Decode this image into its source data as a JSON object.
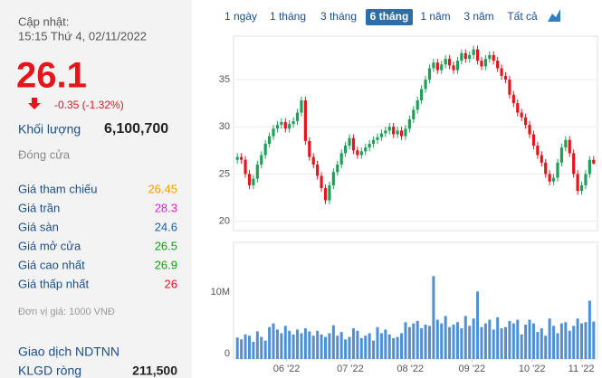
{
  "header": {
    "update_label": "Cập nhật:",
    "update_time": "15:15 Thứ 4, 02/11/2022"
  },
  "quote": {
    "price": 26.1,
    "change": "-0.35 (-1.32%)",
    "volume_label": "Khối lượng",
    "volume": "6,100,700",
    "status": "Đóng cửa"
  },
  "stats": [
    {
      "label": "Giá tham chiếu",
      "value": 26.45,
      "color": "#f0a000"
    },
    {
      "label": "Giá trần",
      "value": 28.3,
      "color": "#e020d8"
    },
    {
      "label": "Giá sàn",
      "value": 24.6,
      "color": "#1f5f9e"
    },
    {
      "label": "Giá mở cửa",
      "value": 26.5,
      "color": "#12a012"
    },
    {
      "label": "Giá cao nhất",
      "value": 26.9,
      "color": "#12a012"
    },
    {
      "label": "Giá thấp nhất",
      "value": 26,
      "color": "#e8141c"
    }
  ],
  "unit_note": "Đơn vị giá: 1000 VNĐ",
  "foreign": {
    "title": "Giao dịch NDTNN",
    "net_label": "KLGD ròng",
    "net_value": "211,500"
  },
  "tabs": {
    "items": [
      "1 ngày",
      "1 tháng",
      "3 tháng",
      "6 tháng",
      "1 năm",
      "3 năm",
      "Tất cả"
    ],
    "active": 3
  },
  "chart_data": [
    {
      "type": "candlestick",
      "up_color": "#1fa05a",
      "down_color": "#e8141c",
      "grid": true,
      "xlim": [
        -0.5,
        89.5
      ],
      "ylim": [
        19,
        39.6
      ],
      "yticks": [
        20,
        25,
        30,
        35
      ],
      "open": [
        26.5,
        26.8,
        26.5,
        25.0,
        23.8,
        24.5,
        26.0,
        27.0,
        28.2,
        29.0,
        29.8,
        30.2,
        30.5,
        29.8,
        30.3,
        30.6,
        31.5,
        32.8,
        28.5,
        26.8,
        26.0,
        24.8,
        23.5,
        22.2,
        23.8,
        25.2,
        26.0,
        27.2,
        28.0,
        28.8,
        27.5,
        27.0,
        27.4,
        27.8,
        28.2,
        28.6,
        28.9,
        29.3,
        29.6,
        30.0,
        29.2,
        29.6,
        29.0,
        29.8,
        30.8,
        31.8,
        32.8,
        34.0,
        35.0,
        36.2,
        36.8,
        36.0,
        36.6,
        37.2,
        36.5,
        36.0,
        37.0,
        37.8,
        37.2,
        37.6,
        38.2,
        37.0,
        36.4,
        37.2,
        37.6,
        37.0,
        36.2,
        35.4,
        35.0,
        33.4,
        32.5,
        31.5,
        31.0,
        30.2,
        29.2,
        28.0,
        27.0,
        26.2,
        25.0,
        24.2,
        24.6,
        26.2,
        27.8,
        28.6,
        27.2,
        25.0,
        23.2,
        23.8,
        25.0,
        26.5
      ],
      "high": [
        27.2,
        27.2,
        26.9,
        25.4,
        24.9,
        26.4,
        27.4,
        28.6,
        29.4,
        30.2,
        30.6,
        30.9,
        30.9,
        30.7,
        31.0,
        31.9,
        33.2,
        33.2,
        28.9,
        27.2,
        26.4,
        25.2,
        23.9,
        24.2,
        25.6,
        26.4,
        27.6,
        28.4,
        29.2,
        29.2,
        27.9,
        27.8,
        28.2,
        28.6,
        29.0,
        29.3,
        29.7,
        30.0,
        30.4,
        30.4,
        30.0,
        30.0,
        30.2,
        31.2,
        32.2,
        33.2,
        34.4,
        35.4,
        36.6,
        37.2,
        37.2,
        37.0,
        37.6,
        37.6,
        36.9,
        37.4,
        38.2,
        38.2,
        38.0,
        38.6,
        38.6,
        37.4,
        37.6,
        38.0,
        38.0,
        37.4,
        36.6,
        35.8,
        35.4,
        33.8,
        32.9,
        31.9,
        31.4,
        30.6,
        29.6,
        28.4,
        27.4,
        26.6,
        25.4,
        25.0,
        26.6,
        28.2,
        29.0,
        29.0,
        27.6,
        25.4,
        24.2,
        25.4,
        26.9,
        26.9
      ],
      "low": [
        26.1,
        26.1,
        24.6,
        23.4,
        23.4,
        24.1,
        25.6,
        26.6,
        27.8,
        28.6,
        29.4,
        29.8,
        29.4,
        29.4,
        29.9,
        30.2,
        31.1,
        28.1,
        26.4,
        25.6,
        24.4,
        23.1,
        21.8,
        21.8,
        23.4,
        24.8,
        25.6,
        26.8,
        27.6,
        27.1,
        26.6,
        26.6,
        27.0,
        27.4,
        27.8,
        28.2,
        28.5,
        28.9,
        29.2,
        28.8,
        28.8,
        28.6,
        28.6,
        29.4,
        30.4,
        31.4,
        32.4,
        33.6,
        34.6,
        35.8,
        35.6,
        35.6,
        36.2,
        36.1,
        35.6,
        35.6,
        36.6,
        36.8,
        36.8,
        37.2,
        36.6,
        36.0,
        36.0,
        36.8,
        36.6,
        35.8,
        35.0,
        34.6,
        33.0,
        32.1,
        31.1,
        30.6,
        29.8,
        28.8,
        27.6,
        26.6,
        25.8,
        24.6,
        23.8,
        23.8,
        24.2,
        25.8,
        27.4,
        26.8,
        24.6,
        22.8,
        22.8,
        23.4,
        24.6,
        26.0
      ],
      "close": [
        26.8,
        26.5,
        25.0,
        23.8,
        24.5,
        26.0,
        27.0,
        28.2,
        29.0,
        29.8,
        30.2,
        30.5,
        29.8,
        30.3,
        30.6,
        31.5,
        32.8,
        28.5,
        26.8,
        26.0,
        24.8,
        23.5,
        22.2,
        23.8,
        25.2,
        26.0,
        27.2,
        28.0,
        28.8,
        27.5,
        27.0,
        27.4,
        27.8,
        28.2,
        28.6,
        28.9,
        29.3,
        29.6,
        30.0,
        29.2,
        29.6,
        29.0,
        29.8,
        30.8,
        31.8,
        32.8,
        34.0,
        35.0,
        36.2,
        36.8,
        36.0,
        36.6,
        37.2,
        36.5,
        36.0,
        37.0,
        37.8,
        37.2,
        37.6,
        38.2,
        37.0,
        36.4,
        37.2,
        37.6,
        37.0,
        36.2,
        35.4,
        35.0,
        33.4,
        32.5,
        31.5,
        31.0,
        30.2,
        29.2,
        28.0,
        27.0,
        26.2,
        25.0,
        24.2,
        24.6,
        26.2,
        27.8,
        28.6,
        27.2,
        25.0,
        23.2,
        23.8,
        25.0,
        26.5,
        26.1
      ]
    },
    {
      "type": "bar",
      "color": "#4f8fd6",
      "grid": false,
      "xlim": [
        -0.5,
        89.5
      ],
      "xticks": [
        {
          "value": 12.3,
          "label": "06 '22"
        },
        {
          "value": 28.2,
          "label": "07 '22"
        },
        {
          "value": 43.2,
          "label": "08 '22"
        },
        {
          "value": 58.6,
          "label": "09 '22"
        },
        {
          "value": 73.6,
          "label": "10 '22"
        },
        {
          "value": 85.9,
          "label": "11 '22"
        }
      ],
      "ylim": [
        0,
        19
      ],
      "yticks": [
        0,
        {
          "value": 10,
          "label": "10M"
        }
      ],
      "values": [
        3.5,
        3.2,
        4.0,
        3.8,
        2.8,
        4.5,
        3.6,
        3.0,
        5.2,
        5.8,
        4.8,
        4.2,
        5.4,
        4.6,
        4.0,
        4.8,
        4.2,
        5.0,
        4.5,
        3.8,
        4.6,
        4.0,
        3.6,
        4.2,
        5.5,
        3.8,
        4.4,
        3.2,
        3.6,
        5.0,
        4.6,
        3.4,
        3.8,
        4.2,
        3.0,
        5.2,
        4.2,
        4.8,
        4.0,
        3.4,
        3.6,
        4.2,
        6.0,
        5.2,
        5.8,
        6.2,
        5.0,
        5.6,
        5.4,
        13.5,
        6.4,
        5.8,
        7.0,
        5.2,
        5.6,
        6.0,
        5.0,
        7.0,
        5.4,
        6.6,
        11.0,
        5.2,
        5.8,
        6.4,
        4.8,
        6.8,
        5.0,
        5.2,
        6.2,
        5.8,
        6.4,
        4.0,
        5.6,
        6.4,
        5.8,
        4.4,
        5.0,
        3.8,
        6.6,
        5.4,
        4.2,
        5.8,
        6.0,
        4.6,
        5.4,
        6.6,
        5.8,
        6.0,
        9.5,
        6.1007
      ]
    }
  ]
}
